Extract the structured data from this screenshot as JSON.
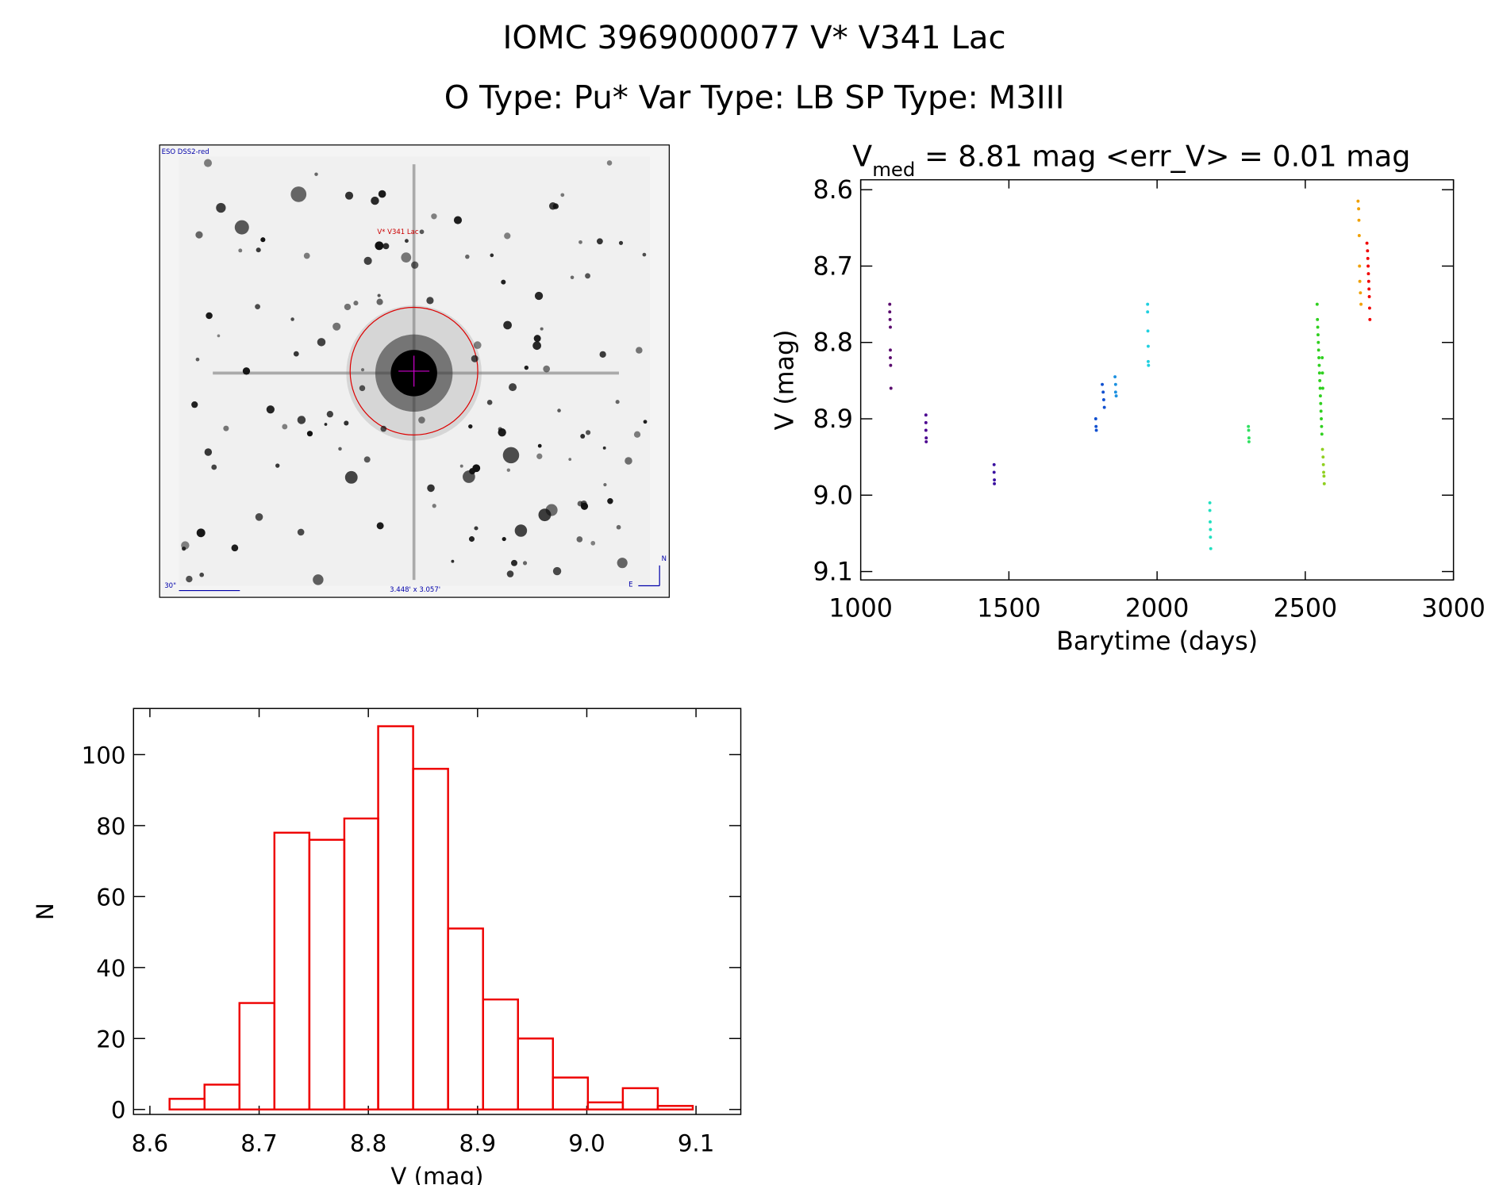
{
  "header": {
    "title": "IOMC 3969000077   V* V341 Lac",
    "subtitle": "O Type: Pu*  Var Type: LB  SP Type: M3III"
  },
  "image": {
    "survey": "ESO DSS2-red",
    "target": "V* V341 Lac",
    "scale": "30\"",
    "field": "3.448' x 3.057'",
    "north": "N",
    "east": "E"
  },
  "chart_data": [
    {
      "type": "scatter",
      "title_parts": [
        "V",
        "med",
        " = 8.81 mag <err_V> = 0.01 mag"
      ],
      "xlabel": "Barytime (days)",
      "ylabel": "V (mag)",
      "xlim": [
        1000,
        3000
      ],
      "xticks": [
        1000,
        1500,
        2000,
        2500,
        3000
      ],
      "ylim": [
        8.587,
        9.111
      ],
      "y_inverted": true,
      "yticks": [
        8.6,
        8.7,
        8.8,
        8.9,
        {
          "value": 9,
          "label": "9.0"
        },
        9.1
      ],
      "series": [
        {
          "color": "#5a0a6e",
          "x": [
            1098,
            1098,
            1099,
            1100,
            1100,
            1100,
            1101,
            1102
          ],
          "values": [
            8.75,
            8.76,
            8.77,
            8.78,
            8.81,
            8.82,
            8.83,
            8.86
          ]
        },
        {
          "color": "#4b0090",
          "x": [
            1220,
            1220,
            1220,
            1221,
            1221
          ],
          "values": [
            8.895,
            8.905,
            8.915,
            8.925,
            8.93
          ]
        },
        {
          "color": "#3a10a0",
          "x": [
            1450,
            1450,
            1451,
            1451
          ],
          "values": [
            8.96,
            8.97,
            8.98,
            8.985
          ]
        },
        {
          "color": "#1050d0",
          "x": [
            1793,
            1794,
            1795,
            1815,
            1818,
            1820,
            1822
          ],
          "values": [
            8.9,
            8.91,
            8.915,
            8.855,
            8.865,
            8.875,
            8.885
          ]
        },
        {
          "color": "#1c90e0",
          "x": [
            1858,
            1860,
            1860,
            1862
          ],
          "values": [
            8.845,
            8.855,
            8.865,
            8.87
          ]
        },
        {
          "color": "#20d0e0",
          "x": [
            1968,
            1968,
            1969,
            1970,
            1970,
            1971
          ],
          "values": [
            8.75,
            8.76,
            8.785,
            8.805,
            8.825,
            8.83
          ]
        },
        {
          "color": "#20e0c0",
          "x": [
            2178,
            2178,
            2179,
            2180,
            2180,
            2181
          ],
          "values": [
            9.01,
            9.02,
            9.035,
            9.045,
            9.055,
            9.07
          ]
        },
        {
          "color": "#30e060",
          "x": [
            2308,
            2309,
            2310,
            2310
          ],
          "values": [
            8.91,
            8.915,
            8.925,
            8.93
          ]
        },
        {
          "color": "#30d020",
          "x": [
            2540,
            2541,
            2542,
            2543,
            2544,
            2545,
            2546,
            2547,
            2548,
            2549,
            2550,
            2551,
            2552,
            2553,
            2554,
            2555,
            2556,
            2557,
            2558,
            2559
          ],
          "values": [
            8.75,
            8.77,
            8.78,
            8.79,
            8.8,
            8.81,
            8.82,
            8.83,
            8.84,
            8.85,
            8.86,
            8.87,
            8.88,
            8.89,
            8.9,
            8.91,
            8.92,
            8.82,
            8.84,
            8.86
          ]
        },
        {
          "color": "#90d020",
          "x": [
            2558,
            2560,
            2561,
            2562,
            2563,
            2564
          ],
          "values": [
            8.94,
            8.95,
            8.96,
            8.97,
            8.975,
            8.985
          ]
        },
        {
          "color": "#f0a000",
          "x": [
            2678,
            2680,
            2681,
            2682,
            2683,
            2684,
            2686,
            2688
          ],
          "values": [
            8.615,
            8.625,
            8.64,
            8.66,
            8.7,
            8.72,
            8.735,
            8.75
          ]
        },
        {
          "color": "#f00000",
          "x": [
            2708,
            2710,
            2711,
            2712,
            2713,
            2714,
            2715,
            2716,
            2717,
            2718
          ],
          "values": [
            8.67,
            8.68,
            8.69,
            8.7,
            8.71,
            8.72,
            8.73,
            8.74,
            8.755,
            8.77
          ]
        }
      ]
    },
    {
      "type": "histogram",
      "xlabel": "V (mag)",
      "ylabel": "N",
      "color": "#ee0000",
      "bins": [
        8.618,
        8.65,
        8.682,
        8.714,
        8.746,
        8.778,
        8.809,
        8.841,
        8.873,
        8.905,
        8.937,
        8.969,
        9.001,
        9.033,
        9.065,
        9.097
      ],
      "values": [
        3,
        7,
        30,
        78,
        76,
        82,
        108,
        96,
        51,
        31,
        20,
        9,
        2,
        6,
        1
      ],
      "xlim": [
        8.585,
        9.141
      ],
      "xticks": [
        8.6,
        8.7,
        8.8,
        8.9,
        {
          "value": 9,
          "label": "9.0"
        },
        9.1
      ],
      "ylim": [
        -1.4,
        113
      ],
      "yticks": [
        0,
        20,
        40,
        60,
        80,
        100
      ]
    }
  ]
}
